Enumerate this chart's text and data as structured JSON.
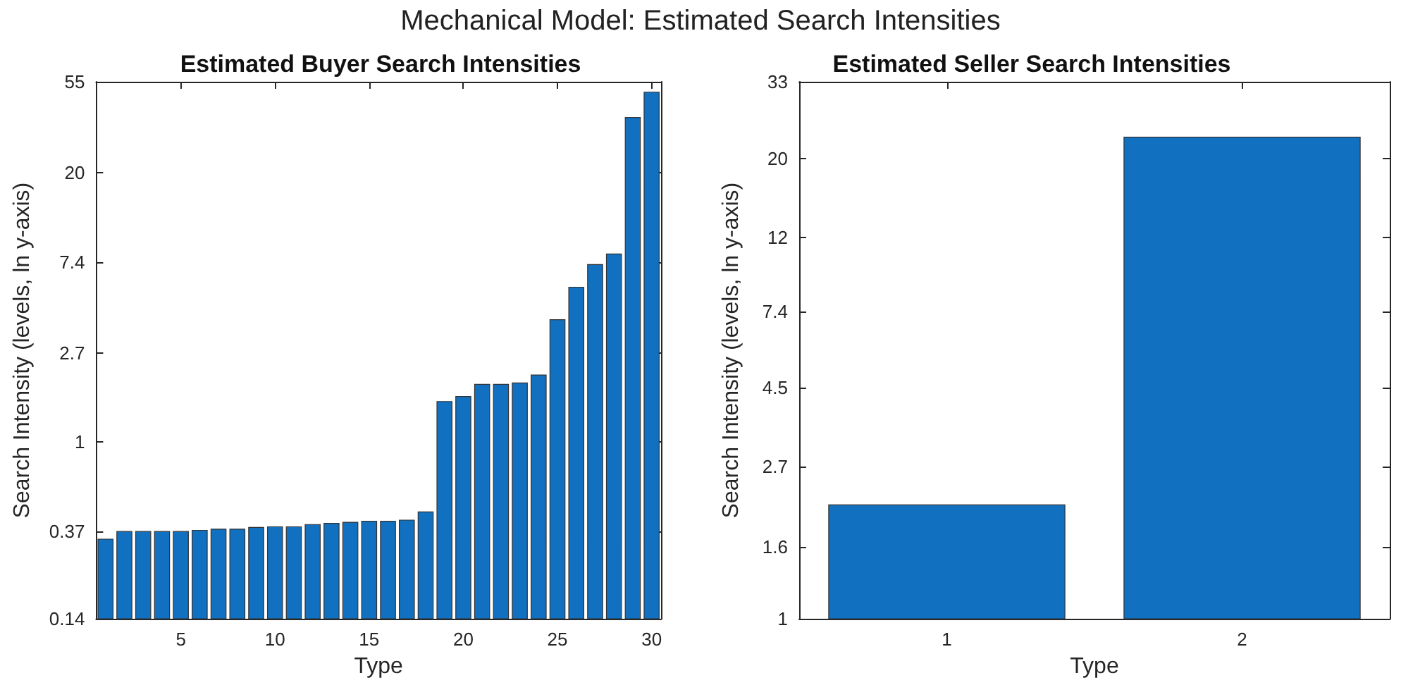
{
  "chart_data": [
    {
      "type": "bar",
      "title": "Estimated Buyer Search Intensities",
      "xlabel": "Type",
      "ylabel": "Search Intensity (levels, ln y-axis)",
      "annotations": [
        "Mechanical Model: Estimated Search Intensities"
      ],
      "log": "y",
      "grid": false,
      "x": [
        1,
        2,
        3,
        4,
        5,
        6,
        7,
        8,
        9,
        10,
        11,
        12,
        13,
        14,
        15,
        16,
        17,
        18,
        19,
        20,
        21,
        22,
        23,
        24,
        25,
        26,
        27,
        28,
        29,
        30
      ],
      "series": [
        {
          "color": "#1170bf",
          "values": [
            0.34,
            0.37,
            0.37,
            0.37,
            0.37,
            0.375,
            0.38,
            0.38,
            0.387,
            0.39,
            0.39,
            0.4,
            0.405,
            0.41,
            0.415,
            0.415,
            0.42,
            0.46,
            1.57,
            1.66,
            1.9,
            1.9,
            1.93,
            2.11,
            3.9,
            5.6,
            7.2,
            8.1,
            37,
            49
          ]
        }
      ],
      "xlim": [
        0.5,
        30.5
      ],
      "xticks": [
        5,
        10,
        15,
        20,
        25,
        30
      ],
      "ylim": [
        0.14,
        55
      ],
      "yticks": [
        0.14,
        0.37,
        1,
        2.7,
        7.4,
        20,
        55
      ]
    },
    {
      "type": "bar",
      "title": "Estimated Seller Search Intensities",
      "xlabel": "Type",
      "ylabel": "Search Intensity (levels, ln y-axis)",
      "log": "y",
      "grid": false,
      "x": [
        1,
        2
      ],
      "series": [
        {
          "color": "#1170bf",
          "values": [
            2.1,
            23
          ]
        }
      ],
      "xlim": [
        0.5,
        2.5
      ],
      "xticks": [
        1,
        2
      ],
      "ylim": [
        1,
        33
      ],
      "yticks": [
        1,
        1.6,
        2.7,
        4.5,
        7.4,
        12,
        20,
        33
      ]
    }
  ]
}
